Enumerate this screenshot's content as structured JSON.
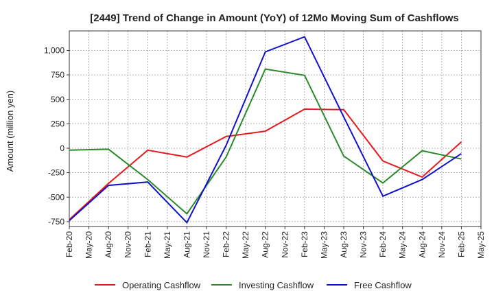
{
  "chart_data": {
    "type": "line",
    "title": "[2449]  Trend of Change in Amount (YoY) of 12Mo Moving Sum of Cashflows",
    "xlabel": "",
    "ylabel": "Amount (million yen)",
    "ylim": [
      -800,
      1200
    ],
    "yticks": [
      -750,
      -500,
      -250,
      0,
      250,
      500,
      750,
      1000
    ],
    "ytick_labels": [
      "-750",
      "-500",
      "-250",
      "0",
      "250",
      "500",
      "750",
      "1,000"
    ],
    "categories": [
      "Feb-20",
      "May-20",
      "Aug-20",
      "Nov-20",
      "Feb-21",
      "May-21",
      "Aug-21",
      "Nov-21",
      "Feb-22",
      "May-22",
      "Aug-22",
      "Nov-22",
      "Feb-23",
      "May-23",
      "Aug-23",
      "Nov-23",
      "Feb-24",
      "May-24",
      "Aug-24",
      "Nov-24",
      "Feb-25",
      "May-25"
    ],
    "grid": true,
    "legend_position": "bottom",
    "series": [
      {
        "name": "Operating Cashflow",
        "color": "#e41a1c",
        "points": [
          [
            0,
            -730
          ],
          [
            2,
            -360
          ],
          [
            4,
            -20
          ],
          [
            6,
            -90
          ],
          [
            8,
            120
          ],
          [
            10,
            175
          ],
          [
            12,
            400
          ],
          [
            14,
            395
          ],
          [
            16,
            -130
          ],
          [
            18,
            -295
          ],
          [
            20,
            65
          ]
        ]
      },
      {
        "name": "Investing Cashflow",
        "color": "#2a8a2a",
        "points": [
          [
            0,
            -20
          ],
          [
            2,
            -10
          ],
          [
            4,
            -320
          ],
          [
            6,
            -670
          ],
          [
            8,
            -90
          ],
          [
            10,
            810
          ],
          [
            12,
            745
          ],
          [
            14,
            -80
          ],
          [
            16,
            -355
          ],
          [
            18,
            -25
          ],
          [
            20,
            -110
          ]
        ]
      },
      {
        "name": "Free Cashflow",
        "color": "#1010cc",
        "points": [
          [
            0,
            -740
          ],
          [
            2,
            -380
          ],
          [
            4,
            -345
          ],
          [
            6,
            -760
          ],
          [
            8,
            30
          ],
          [
            10,
            985
          ],
          [
            12,
            1140
          ],
          [
            14,
            320
          ],
          [
            16,
            -490
          ],
          [
            18,
            -320
          ],
          [
            20,
            -55
          ]
        ]
      }
    ]
  }
}
